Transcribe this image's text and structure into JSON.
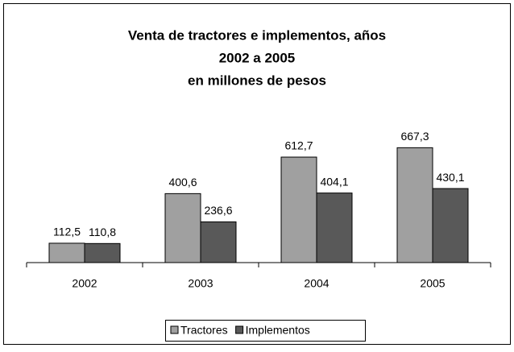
{
  "chart_data": {
    "type": "bar",
    "title": [
      "Venta de tractores e implementos, años",
      "2002 a 2005",
      "en millones de pesos"
    ],
    "categories": [
      "2002",
      "2003",
      "2004",
      "2005"
    ],
    "series": [
      {
        "name": "Tractores",
        "color": "#a0a0a0",
        "values": [
          112.5,
          400.6,
          612.7,
          667.3
        ],
        "value_labels": [
          "112,5",
          "400,6",
          "612,7",
          "667,3"
        ]
      },
      {
        "name": "Implementos",
        "color": "#595959",
        "values": [
          110.8,
          236.6,
          404.1,
          430.1
        ],
        "value_labels": [
          "110,8",
          "236,6",
          "404,1",
          "430,1"
        ]
      }
    ],
    "ylim": [
      0,
      800
    ],
    "legend": "bottom"
  }
}
